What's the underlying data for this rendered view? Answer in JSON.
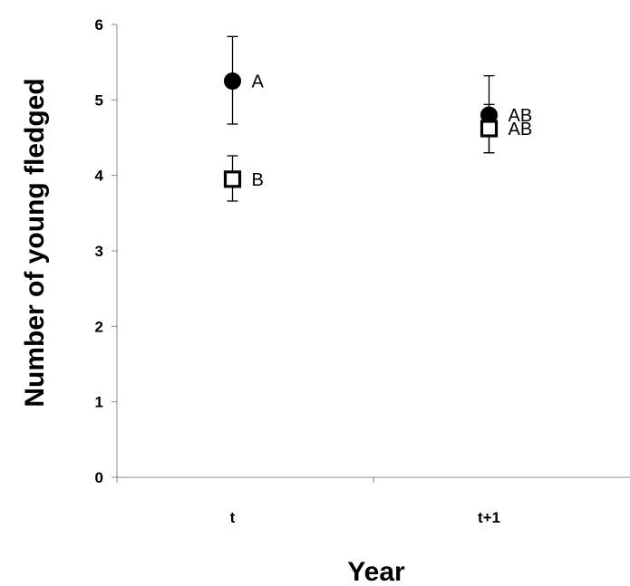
{
  "chart_data": {
    "type": "scatter",
    "xlabel": "Year",
    "ylabel": "Number of young fledged",
    "categories": [
      "t",
      "t+1"
    ],
    "ylim": [
      0,
      6
    ],
    "yticks": [
      "0",
      "1",
      "2",
      "3",
      "4",
      "5",
      "6"
    ],
    "grid": false,
    "series": [
      {
        "marker": "filled-circle",
        "color": "#000000",
        "points": [
          {
            "x": "t",
            "y": 5.25,
            "err_low": 4.68,
            "err_high": 5.84,
            "label": "A"
          },
          {
            "x": "t+1",
            "y": 4.8,
            "err_low": 4.3,
            "err_high": 5.32,
            "label": "AB"
          }
        ]
      },
      {
        "marker": "open-square",
        "color": "#000000",
        "points": [
          {
            "x": "t",
            "y": 3.95,
            "err_low": 3.66,
            "err_high": 4.26,
            "label": "B"
          },
          {
            "x": "t+1",
            "y": 4.62,
            "err_low": 4.3,
            "err_high": 4.94,
            "label": "AB"
          }
        ]
      }
    ]
  }
}
